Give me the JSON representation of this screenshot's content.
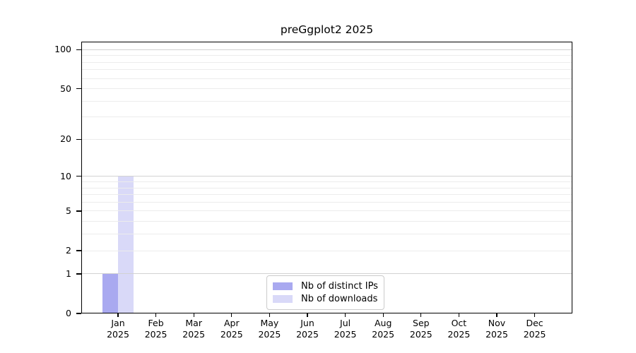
{
  "chart_data": {
    "type": "bar",
    "title": "preGgplot2 2025",
    "categories": [
      "Jan",
      "Feb",
      "Mar",
      "Apr",
      "May",
      "Jun",
      "Jul",
      "Aug",
      "Sep",
      "Oct",
      "Nov",
      "Dec"
    ],
    "x_year": "2025",
    "series": [
      {
        "name": "Nb of distinct IPs",
        "color": "#a9a9f0",
        "values": [
          1,
          0,
          0,
          0,
          0,
          0,
          0,
          0,
          0,
          0,
          0,
          0
        ]
      },
      {
        "name": "Nb of downloads",
        "color": "#d9d9f8",
        "values": [
          10,
          0,
          0,
          0,
          0,
          0,
          0,
          0,
          0,
          0,
          0,
          0
        ]
      }
    ],
    "y_scale": "log1p",
    "y_ticks": [
      0,
      1,
      2,
      5,
      10,
      20,
      50,
      100
    ],
    "ylim": [
      0,
      115
    ],
    "grid": {
      "major_values": [
        1,
        10,
        100
      ],
      "minor_values": [
        2,
        3,
        4,
        5,
        6,
        7,
        8,
        9,
        20,
        30,
        40,
        50,
        60,
        70,
        80,
        90
      ],
      "major_color": "#d2d2d2",
      "minor_color": "#ececec"
    },
    "legend_position": "bottom-center-inside",
    "colors": {
      "axis": "#000000",
      "background": "#ffffff"
    }
  }
}
